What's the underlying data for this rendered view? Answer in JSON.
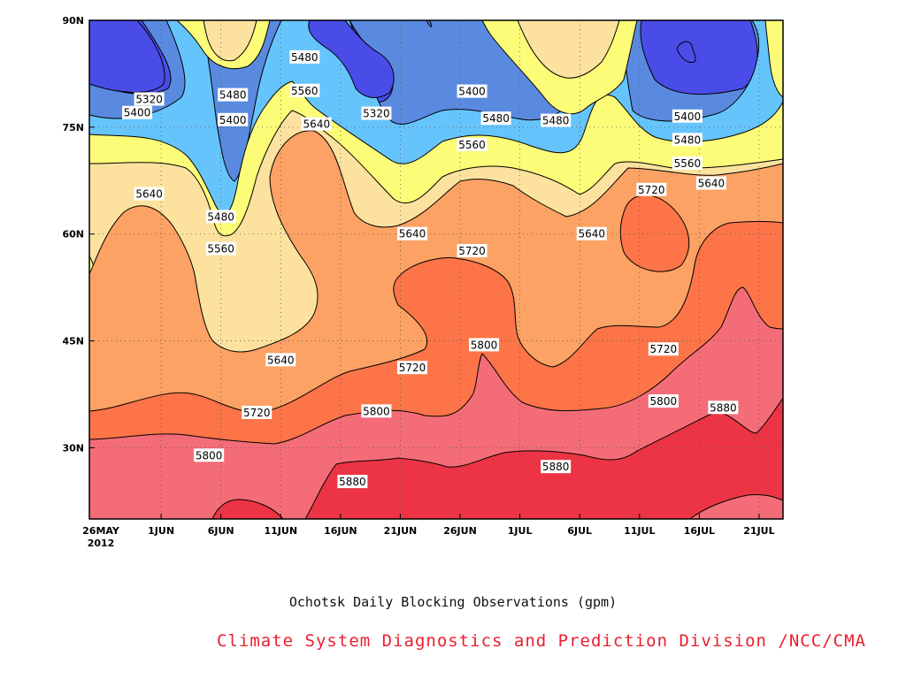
{
  "chart_data": {
    "type": "heatmap",
    "title": "Ochotsk Daily Blocking Observations (gpm)",
    "credit": "Climate System Diagnostics and Prediction Division /NCC/CMA",
    "credit_color": "#e8202f",
    "x_tick_labels": [
      "26MAY",
      "1JUN",
      "6JUN",
      "11JUN",
      "16JUN",
      "21JUN",
      "26JUN",
      "1JUL",
      "6JUL",
      "11JUL",
      "16JUL",
      "21JUL"
    ],
    "x_tick_days": [
      0,
      6,
      11,
      16,
      21,
      26,
      31,
      36,
      41,
      46,
      51,
      56
    ],
    "x_year_label": "2012",
    "x_range_days": [
      0,
      58
    ],
    "y_tick_labels": [
      "30N",
      "45N",
      "60N",
      "75N",
      "90N"
    ],
    "y_tick_values": [
      30,
      45,
      60,
      75,
      90
    ],
    "ylim": [
      20,
      90
    ],
    "grid": true,
    "contour_levels": [
      5320,
      5400,
      5480,
      5560,
      5640,
      5720,
      5800,
      5880
    ],
    "level_colors": [
      "#4a4ce8",
      "#5a8ae0",
      "#66c4fc",
      "#fcfc78",
      "#fce29e",
      "#fca264",
      "#fc7448",
      "#f46c78",
      "#ec3444"
    ],
    "contour_labels": [
      {
        "text": "5320",
        "day": 5,
        "lat": 78.9
      },
      {
        "text": "5400",
        "day": 4,
        "lat": 77.0
      },
      {
        "text": "5480",
        "day": 12,
        "lat": 79.5
      },
      {
        "text": "5400",
        "day": 12,
        "lat": 76.0
      },
      {
        "text": "5480",
        "day": 18,
        "lat": 84.8
      },
      {
        "text": "5560",
        "day": 18,
        "lat": 80.1
      },
      {
        "text": "5640",
        "day": 19,
        "lat": 75.4
      },
      {
        "text": "5320",
        "day": 24,
        "lat": 76.9
      },
      {
        "text": "5400",
        "day": 32,
        "lat": 80.0
      },
      {
        "text": "5480",
        "day": 34,
        "lat": 76.2
      },
      {
        "text": "5480",
        "day": 39,
        "lat": 75.9
      },
      {
        "text": "5560",
        "day": 32,
        "lat": 72.5
      },
      {
        "text": "5640",
        "day": 5,
        "lat": 65.6
      },
      {
        "text": "5480",
        "day": 11,
        "lat": 62.4
      },
      {
        "text": "5560",
        "day": 11,
        "lat": 57.9
      },
      {
        "text": "5640",
        "day": 27,
        "lat": 60.0
      },
      {
        "text": "5720",
        "day": 32,
        "lat": 57.6
      },
      {
        "text": "5640",
        "day": 42,
        "lat": 60.0
      },
      {
        "text": "5720",
        "day": 47,
        "lat": 66.2
      },
      {
        "text": "5400",
        "day": 50,
        "lat": 76.5
      },
      {
        "text": "5480",
        "day": 50,
        "lat": 73.2
      },
      {
        "text": "5560",
        "day": 50,
        "lat": 69.9
      },
      {
        "text": "5640",
        "day": 52,
        "lat": 67.1
      },
      {
        "text": "5640",
        "day": 16,
        "lat": 42.3
      },
      {
        "text": "5720",
        "day": 27,
        "lat": 41.2
      },
      {
        "text": "5800",
        "day": 33,
        "lat": 44.4
      },
      {
        "text": "5720",
        "day": 48,
        "lat": 43.8
      },
      {
        "text": "5720",
        "day": 14,
        "lat": 34.9
      },
      {
        "text": "5800",
        "day": 10,
        "lat": 28.9
      },
      {
        "text": "5800",
        "day": 24,
        "lat": 35.1
      },
      {
        "text": "5880",
        "day": 22,
        "lat": 25.2
      },
      {
        "text": "5880",
        "day": 39,
        "lat": 27.3
      },
      {
        "text": "5800",
        "day": 48,
        "lat": 36.5
      },
      {
        "text": "5880",
        "day": 53,
        "lat": 35.6
      }
    ]
  }
}
